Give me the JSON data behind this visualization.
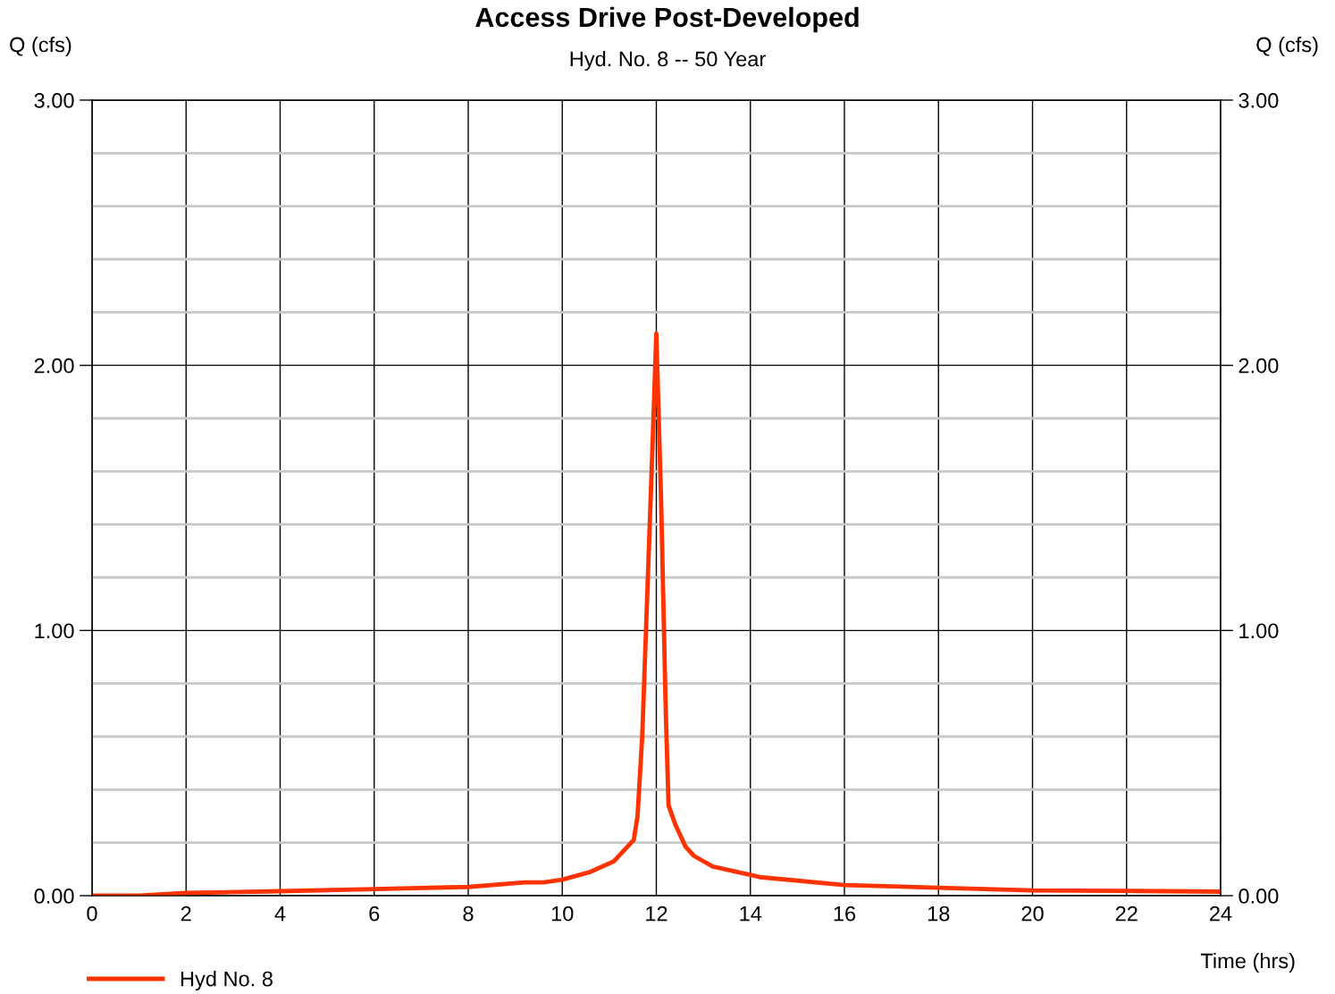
{
  "chart_data": {
    "type": "line",
    "title": "Access Drive Post-Developed",
    "subtitle": "Hyd. No. 8 -- 50 Year",
    "xlabel": "Time (hrs)",
    "ylabel": "Q (cfs)",
    "y2label": "Q (cfs)",
    "series": [
      {
        "name": "Hyd No. 8",
        "color": "#ff3300",
        "x": [
          0,
          1.0,
          2,
          4,
          6,
          8,
          9.2,
          9.6,
          10,
          10.6,
          11.1,
          11.52,
          11.6,
          11.7,
          11.8,
          11.9,
          12.0,
          12.1,
          12.2,
          12.26,
          12.4,
          12.62,
          12.8,
          13.2,
          14.2,
          16,
          18,
          20,
          22,
          24
        ],
        "values": [
          0,
          0,
          0.01,
          0.017,
          0.025,
          0.033,
          0.05,
          0.05,
          0.06,
          0.09,
          0.13,
          0.21,
          0.3,
          0.6,
          1.1,
          1.6,
          2.12,
          1.5,
          0.7,
          0.34,
          0.27,
          0.185,
          0.15,
          0.11,
          0.07,
          0.04,
          0.03,
          0.02,
          0.018,
          0.015
        ]
      }
    ],
    "xlim": [
      0,
      24
    ],
    "xticks": [
      0,
      2,
      4,
      6,
      8,
      10,
      12,
      14,
      16,
      18,
      20,
      22,
      24
    ],
    "ylim": [
      0,
      3
    ],
    "yticks": [
      {
        "value": 0,
        "label": "0.00"
      },
      {
        "value": 1,
        "label": "1.00"
      },
      {
        "value": 2,
        "label": "2.00"
      },
      {
        "value": 3,
        "label": "3.00"
      }
    ],
    "y2lim": [
      0,
      3
    ],
    "y2ticks": [
      {
        "value": 0,
        "label": "0.00"
      },
      {
        "value": 1,
        "label": "1.00"
      },
      {
        "value": 2,
        "label": "2.00"
      },
      {
        "value": 3,
        "label": "3.00"
      }
    ],
    "grid": true,
    "legend": "bottom left",
    "line_style": "solid"
  }
}
